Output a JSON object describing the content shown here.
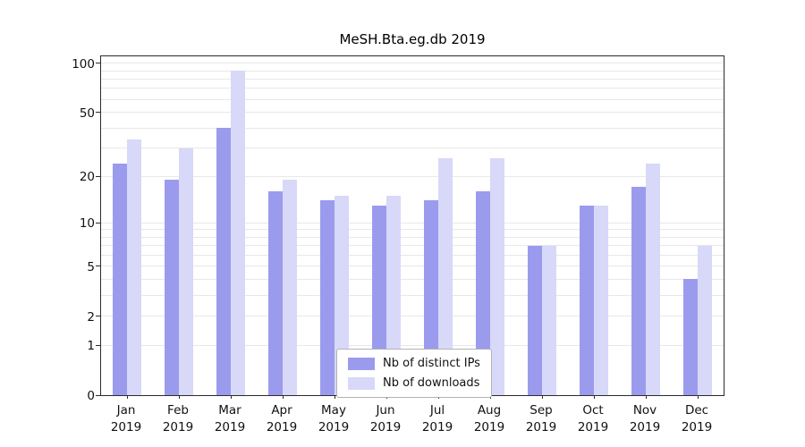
{
  "chart_data": {
    "type": "bar",
    "title": "MeSH.Bta.eg.db 2019",
    "year": "2019",
    "categories": [
      "Jan",
      "Feb",
      "Mar",
      "Apr",
      "May",
      "Jun",
      "Jul",
      "Aug",
      "Sep",
      "Oct",
      "Nov",
      "Dec"
    ],
    "series": [
      {
        "name": "Nb of distinct IPs",
        "color": "#9b9bee",
        "values": [
          24,
          19,
          40,
          16,
          14,
          13,
          14,
          16,
          7,
          13,
          17,
          4
        ]
      },
      {
        "name": "Nb of downloads",
        "color": "#d8d8f8",
        "values": [
          34,
          30,
          90,
          19,
          15,
          15,
          26,
          26,
          7,
          13,
          24,
          7
        ]
      }
    ],
    "yticks": [
      0,
      1,
      2,
      5,
      10,
      20,
      50,
      100
    ],
    "grid_values": [
      1,
      2,
      3,
      4,
      5,
      6,
      7,
      8,
      9,
      10,
      20,
      30,
      40,
      50,
      60,
      70,
      80,
      90,
      100
    ],
    "scale": "log1p",
    "ylim": [
      0,
      110
    ],
    "grid": "on",
    "legend_position": "lower center",
    "xlabel": "",
    "ylabel": ""
  }
}
